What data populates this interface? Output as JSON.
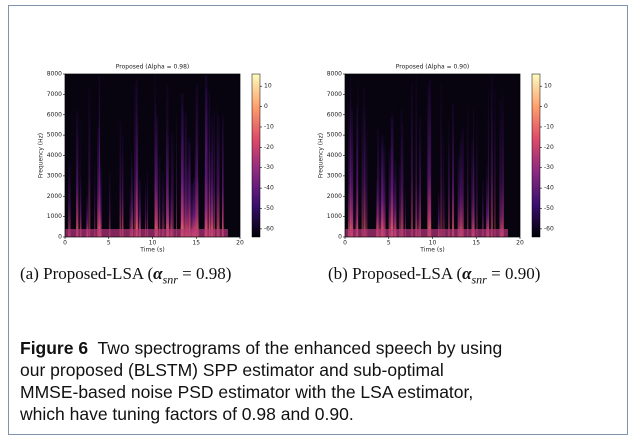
{
  "figures": [
    {
      "title": "Proposed (Alpha = 0.98)",
      "xlabel": "Time (s)",
      "ylabel": "Frequency (Hz)",
      "xlim": [
        0,
        20
      ],
      "xticks": [
        0,
        5,
        10,
        15,
        20
      ],
      "ylim": [
        0,
        8000
      ],
      "yticks": [
        0,
        1000,
        2000,
        3000,
        4000,
        5000,
        6000,
        7000,
        8000
      ],
      "clim": [
        -64,
        16
      ],
      "cticks": [
        10,
        0,
        -10,
        -20,
        -30,
        -40,
        -50,
        -60
      ],
      "subcaption": {
        "prefix": "(a) Proposed-LSA (",
        "symbol": "α",
        "subscript": "snr",
        "suffix": "= 0.98)"
      }
    },
    {
      "title": "Proposed (Alpha = 0.90)",
      "xlabel": "Time (s)",
      "ylabel": "Frequency (Hz)",
      "xlim": [
        0,
        20
      ],
      "xticks": [
        0,
        5,
        10,
        15,
        20
      ],
      "ylim": [
        0,
        8000
      ],
      "yticks": [
        0,
        1000,
        2000,
        3000,
        4000,
        5000,
        6000,
        7000,
        8000
      ],
      "clim": [
        -64,
        16
      ],
      "cticks": [
        10,
        0,
        -10,
        -20,
        -30,
        -40,
        -50,
        -60
      ],
      "subcaption": {
        "prefix": "(b) Proposed-LSA (",
        "symbol": "α",
        "subscript": "snr",
        "suffix": "= 0.90)"
      }
    }
  ],
  "caption": {
    "label": "Figure 6",
    "lines": [
      "Two spectrograms of the enhanced speech by using",
      "our proposed (BLSTM) SPP estimator and sub-optimal",
      "MMSE-based noise PSD estimator with the LSA estimator,",
      "which have tuning factors of 0.98 and 0.90."
    ]
  }
}
